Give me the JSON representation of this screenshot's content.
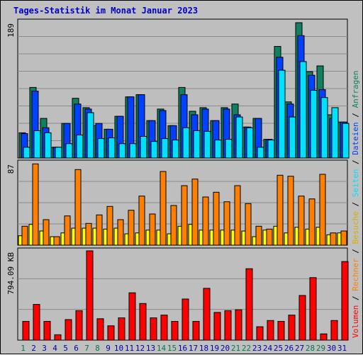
{
  "title": "Tages-Statistik im Monat Januar 2023",
  "colors": {
    "background": "#c0c0c0",
    "plot_background": "#bebebe",
    "hits": "#108060",
    "files": "#0040ff",
    "pages": "#00e0ff",
    "visits": "#ffff00",
    "sites": "#ff8000",
    "kbytes": "#ff0000",
    "weekday_label": "#0000aa",
    "weekend_label": "#007a4a"
  },
  "chart_data": [
    {
      "type": "bar",
      "title": "Tages-Statistik im Monat Januar 2023",
      "categories": [
        "1",
        "2",
        "3",
        "4",
        "5",
        "6",
        "7",
        "8",
        "9",
        "10",
        "11",
        "12",
        "13",
        "14",
        "15",
        "16",
        "17",
        "18",
        "19",
        "20",
        "21",
        "22",
        "23",
        "24",
        "25",
        "26",
        "27",
        "28",
        "29",
        "30",
        "31"
      ],
      "weekend_days": [
        "1",
        "7",
        "8",
        "14",
        "15",
        "21",
        "22",
        "28",
        "29"
      ],
      "ymax_label": "189",
      "ylim": [
        0,
        189
      ],
      "series": [
        {
          "name": "Anfragen",
          "color": "#108060",
          "values": [
            35,
            98,
            55,
            15,
            48,
            83,
            70,
            45,
            40,
            58,
            85,
            88,
            52,
            68,
            45,
            98,
            65,
            70,
            52,
            70,
            75,
            43,
            55,
            26,
            155,
            78,
            188,
            120,
            128,
            60,
            50
          ]
        },
        {
          "name": "Dateien",
          "color": "#0040ff",
          "values": [
            34,
            93,
            42,
            15,
            48,
            75,
            68,
            48,
            40,
            58,
            85,
            88,
            52,
            66,
            45,
            88,
            60,
            68,
            52,
            68,
            60,
            43,
            55,
            26,
            140,
            75,
            170,
            115,
            95,
            55,
            50
          ]
        },
        {
          "name": "Seiten",
          "color": "#00e0ff",
          "values": [
            15,
            38,
            35,
            15,
            20,
            32,
            63,
            27,
            28,
            20,
            20,
            30,
            23,
            27,
            25,
            42,
            38,
            37,
            25,
            26,
            57,
            42,
            15,
            25,
            122,
            57,
            134,
            94,
            84,
            70,
            48
          ]
        }
      ]
    },
    {
      "type": "bar",
      "ymax_label": "87",
      "ylim": [
        0,
        87
      ],
      "series": [
        {
          "name": "Besuche",
          "color": "#ffff00",
          "values": [
            10,
            22,
            15,
            9,
            13,
            18,
            18,
            18,
            17,
            18,
            12,
            13,
            16,
            16,
            12,
            20,
            22,
            16,
            16,
            16,
            16,
            15,
            9,
            16,
            20,
            13,
            19,
            17,
            19,
            11,
            13
          ]
        },
        {
          "name": "Rechner",
          "color": "#ff8000",
          "values": [
            20,
            86,
            27,
            9,
            31,
            80,
            23,
            32,
            41,
            27,
            37,
            52,
            33,
            78,
            42,
            63,
            70,
            51,
            56,
            46,
            63,
            44,
            20,
            17,
            74,
            73,
            52,
            49,
            75,
            13,
            15
          ]
        }
      ]
    },
    {
      "type": "bar",
      "ymax_label": "794.09 KB",
      "ylim": [
        0,
        1000
      ],
      "series": [
        {
          "name": "Volumen",
          "color": "#ff0000",
          "values": [
            210,
            400,
            210,
            60,
            230,
            330,
            1000,
            240,
            160,
            250,
            530,
            410,
            250,
            280,
            210,
            460,
            210,
            580,
            310,
            330,
            340,
            800,
            150,
            220,
            210,
            280,
            500,
            700,
            70,
            220,
            880
          ]
        }
      ]
    }
  ],
  "right_legend": [
    "Anfragen",
    "/",
    "Dateien",
    "/",
    "Seiten",
    "/",
    "Besuche",
    "/",
    "Rechner",
    "/",
    "Volumen"
  ]
}
